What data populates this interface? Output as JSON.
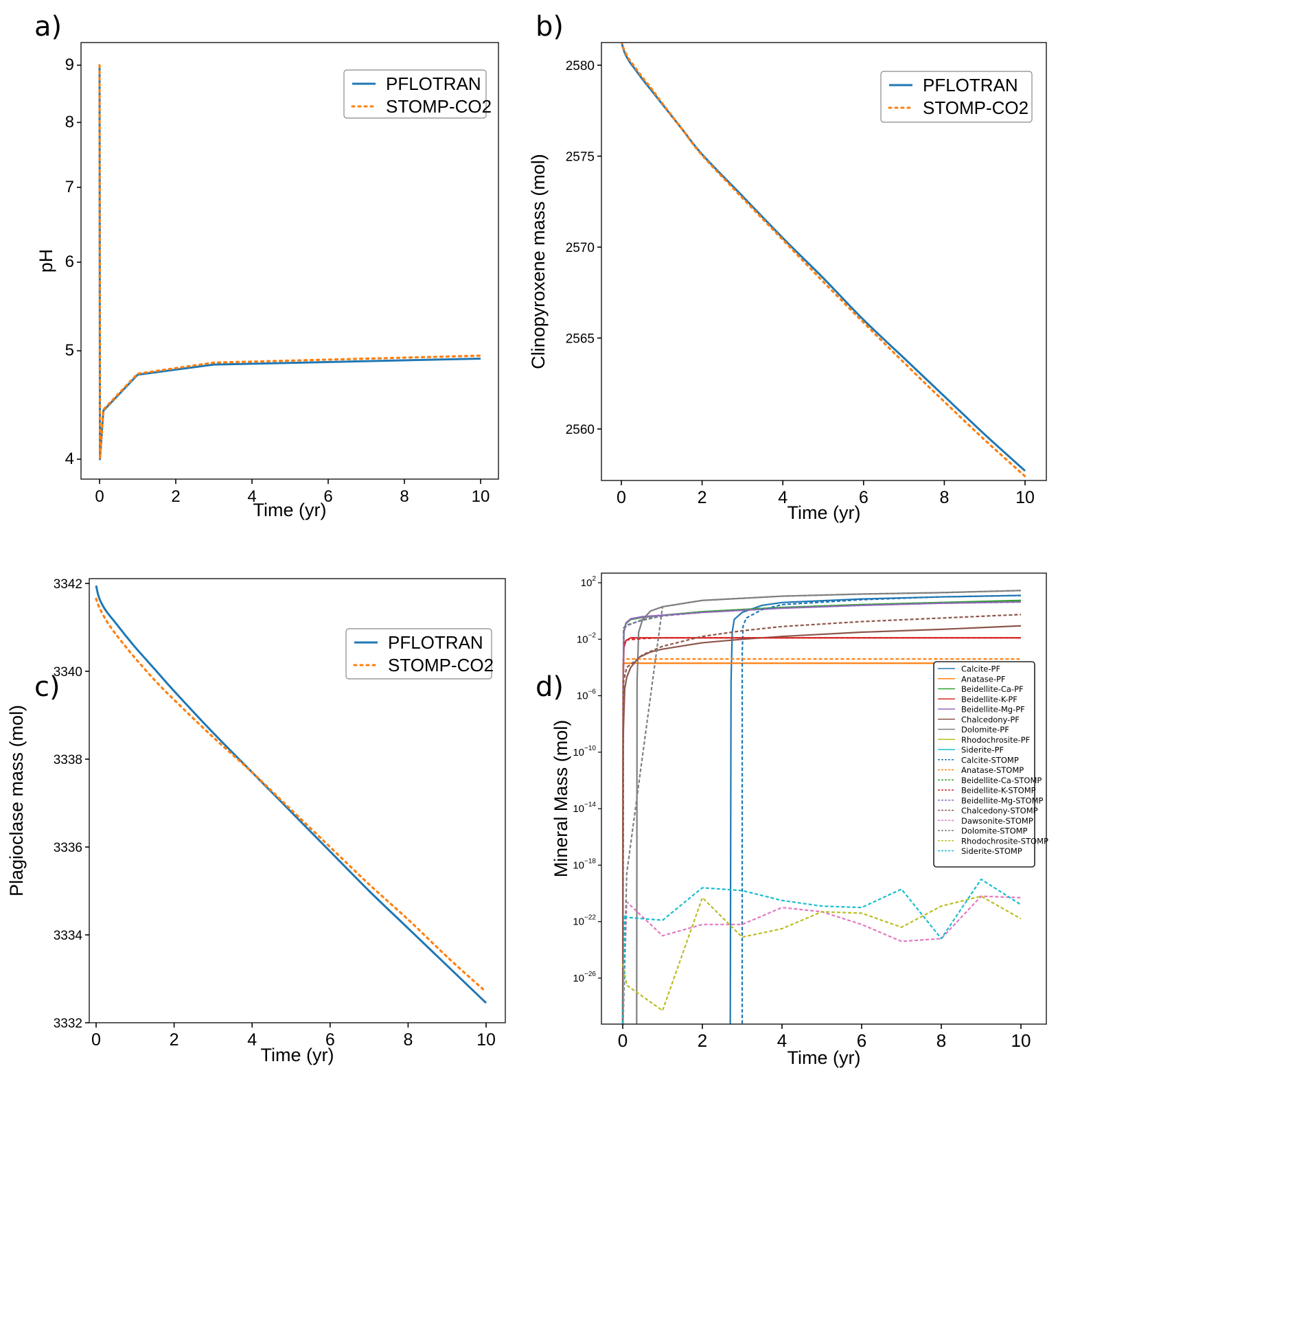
{
  "figure": {
    "panels": [
      "a)",
      "b)",
      "c)",
      "d)"
    ]
  },
  "chart_data": [
    {
      "id": "a",
      "panel_label": "a)",
      "type": "line",
      "title": "",
      "xlabel": "Time (yr)",
      "ylabel": "pH",
      "xlim": [
        -0.5,
        10.5
      ],
      "ylim": [
        3.85,
        9.4
      ],
      "yscale": "log",
      "xticks": [
        0,
        2,
        4,
        6,
        8,
        10
      ],
      "yticks": [
        4,
        5,
        6,
        7,
        8,
        9
      ],
      "grid": false,
      "legend_position": "top-right",
      "series": [
        {
          "name": "PFLOTRAN",
          "style": "solid",
          "color": "#1f77b4",
          "x": [
            0,
            0.01,
            0.1,
            1,
            3,
            10
          ],
          "y": [
            9.0,
            4.0,
            4.42,
            4.76,
            4.86,
            4.92
          ]
        },
        {
          "name": "STOMP-CO2",
          "style": "dotted",
          "color": "#ff7f0e",
          "x": [
            0,
            0.01,
            0.1,
            1,
            3,
            10
          ],
          "y": [
            9.0,
            4.0,
            4.43,
            4.77,
            4.88,
            4.95
          ]
        }
      ]
    },
    {
      "id": "b",
      "panel_label": "b)",
      "type": "line",
      "title": "",
      "xlabel": "Time (yr)",
      "ylabel": "Clinopyroxene mass (mol)",
      "xlim": [
        -0.5,
        10.5
      ],
      "ylim": [
        2557.2,
        2581.3
      ],
      "xticks": [
        0,
        2,
        4,
        6,
        8,
        10
      ],
      "yticks": [
        2560,
        2565,
        2570,
        2575,
        2580
      ],
      "grid": false,
      "legend_position": "top-right",
      "series": [
        {
          "name": "PFLOTRAN",
          "style": "solid",
          "color": "#1f77b4",
          "x": [
            0,
            0.05,
            0.1,
            0.2,
            0.3,
            0.5,
            0.75,
            1,
            1.5,
            2,
            3,
            4,
            5,
            6,
            7,
            8,
            9,
            10
          ],
          "y": [
            2581.3,
            2580.9,
            2580.6,
            2580.2,
            2579.9,
            2579.3,
            2578.6,
            2577.9,
            2576.5,
            2575.1,
            2572.8,
            2570.5,
            2568.3,
            2566.0,
            2563.9,
            2561.8,
            2559.7,
            2557.7
          ]
        },
        {
          "name": "STOMP-CO2",
          "style": "dotted",
          "color": "#ff7f0e",
          "x": [
            0,
            0.05,
            0.1,
            0.2,
            0.3,
            0.5,
            0.75,
            1,
            1.5,
            2,
            3,
            4,
            5,
            6,
            7,
            8,
            9,
            10
          ],
          "y": [
            2581.3,
            2580.95,
            2580.7,
            2580.3,
            2580.0,
            2579.4,
            2578.7,
            2577.95,
            2576.5,
            2575.05,
            2572.7,
            2570.4,
            2568.1,
            2565.85,
            2563.65,
            2561.5,
            2559.4,
            2557.4
          ]
        }
      ]
    },
    {
      "id": "c",
      "panel_label": "c)",
      "type": "line",
      "title": "",
      "xlabel": "Time (yr)",
      "ylabel": "Plagioclase mass (mol)",
      "xlim": [
        -0.5,
        10.5
      ],
      "ylim": [
        3332,
        3342.1
      ],
      "xticks": [
        0,
        2,
        4,
        6,
        8,
        10
      ],
      "yticks": [
        3332,
        3334,
        3336,
        3338,
        3340,
        3342
      ],
      "grid": false,
      "legend_position": "upper-right",
      "series": [
        {
          "name": "PFLOTRAN",
          "style": "solid",
          "color": "#1f77b4",
          "x": [
            0,
            0.05,
            0.1,
            0.2,
            0.3,
            0.5,
            0.75,
            1,
            1.5,
            2,
            3,
            4,
            5,
            6,
            7,
            8,
            9,
            10
          ],
          "y": [
            3341.95,
            3341.75,
            3341.62,
            3341.45,
            3341.32,
            3341.1,
            3340.82,
            3340.55,
            3340.05,
            3339.55,
            3338.6,
            3337.7,
            3336.8,
            3335.9,
            3335.0,
            3334.15,
            3333.3,
            3332.45
          ]
        },
        {
          "name": "STOMP-CO2",
          "style": "dotted",
          "color": "#ff7f0e",
          "x": [
            0,
            0.05,
            0.1,
            0.2,
            0.3,
            0.5,
            0.75,
            1,
            1.5,
            2,
            3,
            4,
            5,
            6,
            7,
            8,
            9,
            10
          ],
          "y": [
            3341.65,
            3341.52,
            3341.42,
            3341.25,
            3341.1,
            3340.85,
            3340.57,
            3340.3,
            3339.8,
            3339.35,
            3338.5,
            3337.7,
            3336.85,
            3336.0,
            3335.15,
            3334.35,
            3333.5,
            3332.7
          ]
        }
      ]
    },
    {
      "id": "d",
      "panel_label": "d)",
      "type": "line",
      "title": "",
      "xlabel": "Time (yr)",
      "ylabel": "Mineral Mass (mol)",
      "xlim": [
        -0.5,
        10.5
      ],
      "ylim_log10": [
        -29.7,
        2.7
      ],
      "yscale": "log",
      "xticks": [
        0,
        2,
        4,
        6,
        8,
        10
      ],
      "yticks_log10": [
        2,
        -2,
        -6,
        -10,
        -14,
        -18,
        -22,
        -26
      ],
      "ytick_labels": [
        "10^2",
        "10^−2",
        "10^−6",
        "10^−10",
        "10^−14",
        "10^−18",
        "10^−22",
        "10^−26"
      ],
      "grid": false,
      "legend_position": "center-right",
      "series": [
        {
          "name": "Calcite-PF",
          "style": "solid",
          "color": "#1f77b4",
          "x": [
            2.7,
            2.72,
            2.75,
            2.8,
            3.0,
            3.5,
            4,
            6,
            8,
            10
          ],
          "log10y": [
            -30,
            -5,
            -1.5,
            -0.6,
            -0.1,
            0.4,
            0.6,
            0.85,
            1.0,
            1.1
          ]
        },
        {
          "name": "Anatase-PF",
          "style": "solid",
          "color": "#ff7f0e",
          "x": [
            0,
            0.005,
            0.01,
            10
          ],
          "log10y": [
            -30,
            -15,
            -3.7,
            -3.7
          ]
        },
        {
          "name": "Beidellite-Ca-PF",
          "style": "solid",
          "color": "#2ca02c",
          "x": [
            0,
            0.01,
            0.03,
            0.08,
            0.2,
            0.5,
            1,
            2,
            4,
            6,
            8,
            10
          ],
          "log10y": [
            -30,
            -5,
            -1.5,
            -0.9,
            -0.6,
            -0.45,
            -0.3,
            -0.05,
            0.25,
            0.45,
            0.6,
            0.75
          ]
        },
        {
          "name": "Beidellite-K-PF",
          "style": "solid",
          "color": "#d62728",
          "x": [
            0,
            0.01,
            0.03,
            0.08,
            0.2,
            0.5,
            10
          ],
          "log10y": [
            -30,
            -5,
            -2.6,
            -2.1,
            -1.9,
            -1.9,
            -1.9
          ]
        },
        {
          "name": "Beidellite-Mg-PF",
          "style": "solid",
          "color": "#9467bd",
          "x": [
            0,
            0.01,
            0.03,
            0.08,
            0.2,
            0.5,
            1,
            2,
            4,
            6,
            8,
            10
          ],
          "log10y": [
            -30,
            -5,
            -1.4,
            -0.85,
            -0.55,
            -0.4,
            -0.3,
            -0.1,
            0.2,
            0.4,
            0.55,
            0.65
          ]
        },
        {
          "name": "Chalcedony-PF",
          "style": "solid",
          "color": "#8c564b",
          "x": [
            0,
            0.01,
            0.05,
            0.1,
            0.2,
            0.4,
            0.7,
            1,
            2,
            3,
            4,
            6,
            8,
            10
          ],
          "log10y": [
            -30,
            -9,
            -5.5,
            -4.7,
            -4.0,
            -3.3,
            -2.9,
            -2.7,
            -2.25,
            -2.0,
            -1.8,
            -1.5,
            -1.3,
            -1.05
          ]
        },
        {
          "name": "Dolomite-PF",
          "style": "solid",
          "color": "#7f7f7f",
          "x": [
            0.35,
            0.36,
            0.4,
            0.5,
            0.7,
            1,
            2,
            4,
            6,
            8,
            10
          ],
          "log10y": [
            -30,
            -5,
            -1.5,
            -0.6,
            0.0,
            0.3,
            0.75,
            1.05,
            1.2,
            1.3,
            1.45
          ]
        },
        {
          "name": "Rhodochrosite-PF",
          "style": "solid",
          "color": "#bcbd22",
          "x": [],
          "log10y": []
        },
        {
          "name": "Siderite-PF",
          "style": "solid",
          "color": "#17becf",
          "x": [],
          "log10y": []
        },
        {
          "name": "Calcite-STOMP",
          "style": "dashed",
          "color": "#1f77b4",
          "x": [
            3,
            3.001,
            3.02,
            3.1,
            3.5,
            4,
            6,
            8,
            10
          ],
          "log10y": [
            -30,
            -3,
            -1.1,
            -0.5,
            0.1,
            0.45,
            0.8,
            1.0,
            1.1
          ]
        },
        {
          "name": "Anatase-STOMP",
          "style": "dashed",
          "color": "#ff7f0e",
          "x": [
            0,
            0.005,
            0.01,
            10
          ],
          "log10y": [
            -30,
            -15,
            -3.4,
            -3.4
          ]
        },
        {
          "name": "Beidellite-Ca-STOMP",
          "style": "dashed",
          "color": "#2ca02c",
          "x": [
            0,
            0.02,
            0.1,
            0.5,
            1,
            2,
            4,
            6,
            8,
            10
          ],
          "log10y": [
            -30,
            -1.2,
            -1.0,
            -0.65,
            -0.35,
            -0.05,
            0.25,
            0.45,
            0.6,
            0.72
          ]
        },
        {
          "name": "Beidellite-K-STOMP",
          "style": "dashed",
          "color": "#d62728",
          "x": [
            0,
            0.02,
            0.1,
            0.5,
            1,
            10
          ],
          "log10y": [
            -30,
            -2.3,
            -2.05,
            -1.95,
            -1.9,
            -1.9
          ]
        },
        {
          "name": "Beidellite-Mg-STOMP",
          "style": "dashed",
          "color": "#9467bd",
          "x": [
            0,
            0.02,
            0.1,
            0.5,
            1,
            2,
            4,
            6,
            8,
            10
          ],
          "log10y": [
            -30,
            -1.3,
            -1.05,
            -0.6,
            -0.35,
            -0.1,
            0.2,
            0.4,
            0.55,
            0.63
          ]
        },
        {
          "name": "Chalcedony-STOMP",
          "style": "dashed",
          "color": "#8c564b",
          "x": [
            0,
            0.02,
            0.1,
            0.5,
            1,
            2,
            3,
            4,
            6,
            8,
            10
          ],
          "log10y": [
            -30,
            -5,
            -4.0,
            -3.1,
            -2.5,
            -1.8,
            -1.4,
            -1.1,
            -0.75,
            -0.5,
            -0.25
          ]
        },
        {
          "name": "Dawsonite-STOMP",
          "style": "dashed",
          "color": "#e377c2",
          "x": [
            0,
            0.1,
            1,
            2,
            3,
            4,
            5,
            6,
            7,
            8,
            9,
            10
          ],
          "log10y": [
            -30,
            -20.6,
            -23.0,
            -22.2,
            -22.2,
            -21.0,
            -21.3,
            -22.2,
            -23.4,
            -23.2,
            -20.2,
            -20.3
          ]
        },
        {
          "name": "Dolomite-STOMP",
          "style": "dashed",
          "color": "#7f7f7f",
          "x": [
            0,
            0.1,
            1,
            2,
            4,
            6,
            8,
            10
          ],
          "log10y": [
            -30,
            -18.6,
            0.3,
            0.75,
            1.05,
            1.2,
            1.3,
            1.45
          ]
        },
        {
          "name": "Rhodochrosite-STOMP",
          "style": "dashed",
          "color": "#bcbd22",
          "x": [
            0,
            0.1,
            1,
            2,
            3,
            4,
            5,
            6,
            7,
            8,
            9,
            10
          ],
          "log10y": [
            -25,
            -26.5,
            -28.3,
            -20.3,
            -23.1,
            -22.5,
            -21.3,
            -21.4,
            -22.4,
            -20.9,
            -20.2,
            -21.8
          ]
        },
        {
          "name": "Siderite-STOMP",
          "style": "dashed",
          "color": "#17becf",
          "x": [
            0,
            0.05,
            0.1,
            1,
            2,
            3,
            4,
            5,
            6,
            7,
            8,
            9,
            10
          ],
          "log10y": [
            -30,
            -21.5,
            -21.7,
            -21.9,
            -19.6,
            -19.8,
            -20.5,
            -20.9,
            -21.0,
            -19.7,
            -23.2,
            -19.0,
            -20.8
          ]
        }
      ]
    }
  ]
}
